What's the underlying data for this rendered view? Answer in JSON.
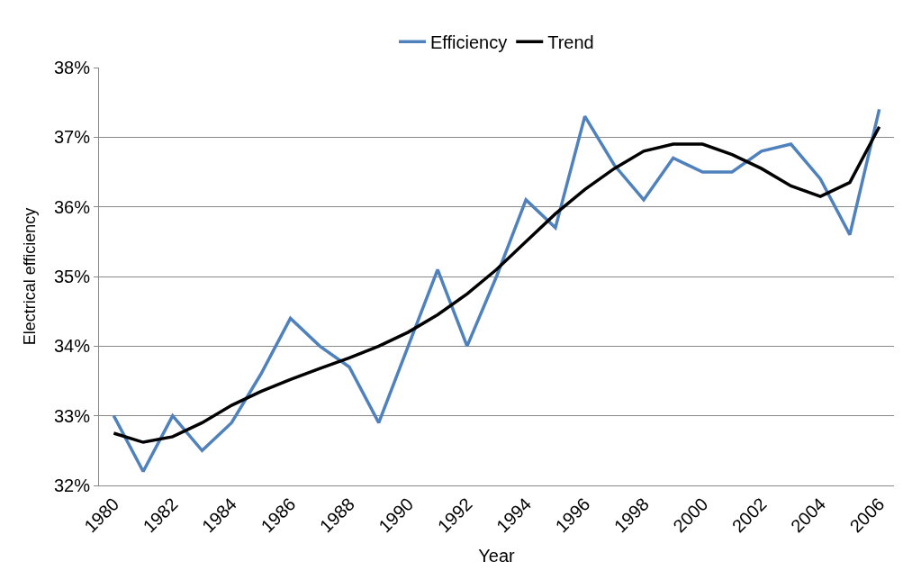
{
  "chart_data": {
    "type": "line",
    "xlabel": "Year",
    "ylabel": "Electrical efficiency",
    "categories": [
      "1980",
      null,
      "1982",
      null,
      "1984",
      null,
      "1986",
      null,
      "1988",
      null,
      "1990",
      null,
      "1992",
      null,
      "1994",
      null,
      "1996",
      null,
      "1998",
      null,
      "2000",
      null,
      "2002",
      null,
      "2004",
      null,
      "2006"
    ],
    "series": [
      {
        "name": "Efficiency",
        "color": "#4f81bd",
        "values": [
          33.0,
          32.2,
          33.0,
          32.5,
          32.9,
          33.6,
          34.4,
          34.0,
          33.7,
          32.9,
          34.0,
          35.1,
          34.0,
          35.0,
          36.1,
          35.7,
          37.3,
          36.6,
          36.1,
          36.7,
          36.5,
          36.5,
          36.8,
          36.9,
          36.4,
          35.6,
          37.4
        ]
      },
      {
        "name": "Trend",
        "color": "#000000",
        "values": [
          32.75,
          32.62,
          32.7,
          32.9,
          33.15,
          33.35,
          33.52,
          33.68,
          33.83,
          34.0,
          34.2,
          34.45,
          34.75,
          35.1,
          35.5,
          35.9,
          36.25,
          36.55,
          36.8,
          36.9,
          36.9,
          36.75,
          36.55,
          36.3,
          36.15,
          36.35,
          37.15
        ]
      }
    ],
    "ylim": [
      32,
      38
    ],
    "yticks": [
      {
        "value": 32,
        "label": "32%"
      },
      {
        "value": 33,
        "label": "33%"
      },
      {
        "value": 34,
        "label": "34%"
      },
      {
        "value": 35,
        "label": "35%"
      },
      {
        "value": 36,
        "label": "36%"
      },
      {
        "value": 37,
        "label": "37%"
      },
      {
        "value": 38,
        "label": "38%"
      }
    ],
    "grid": "y",
    "legend": "top",
    "marker": "none",
    "line_style": "solid"
  }
}
